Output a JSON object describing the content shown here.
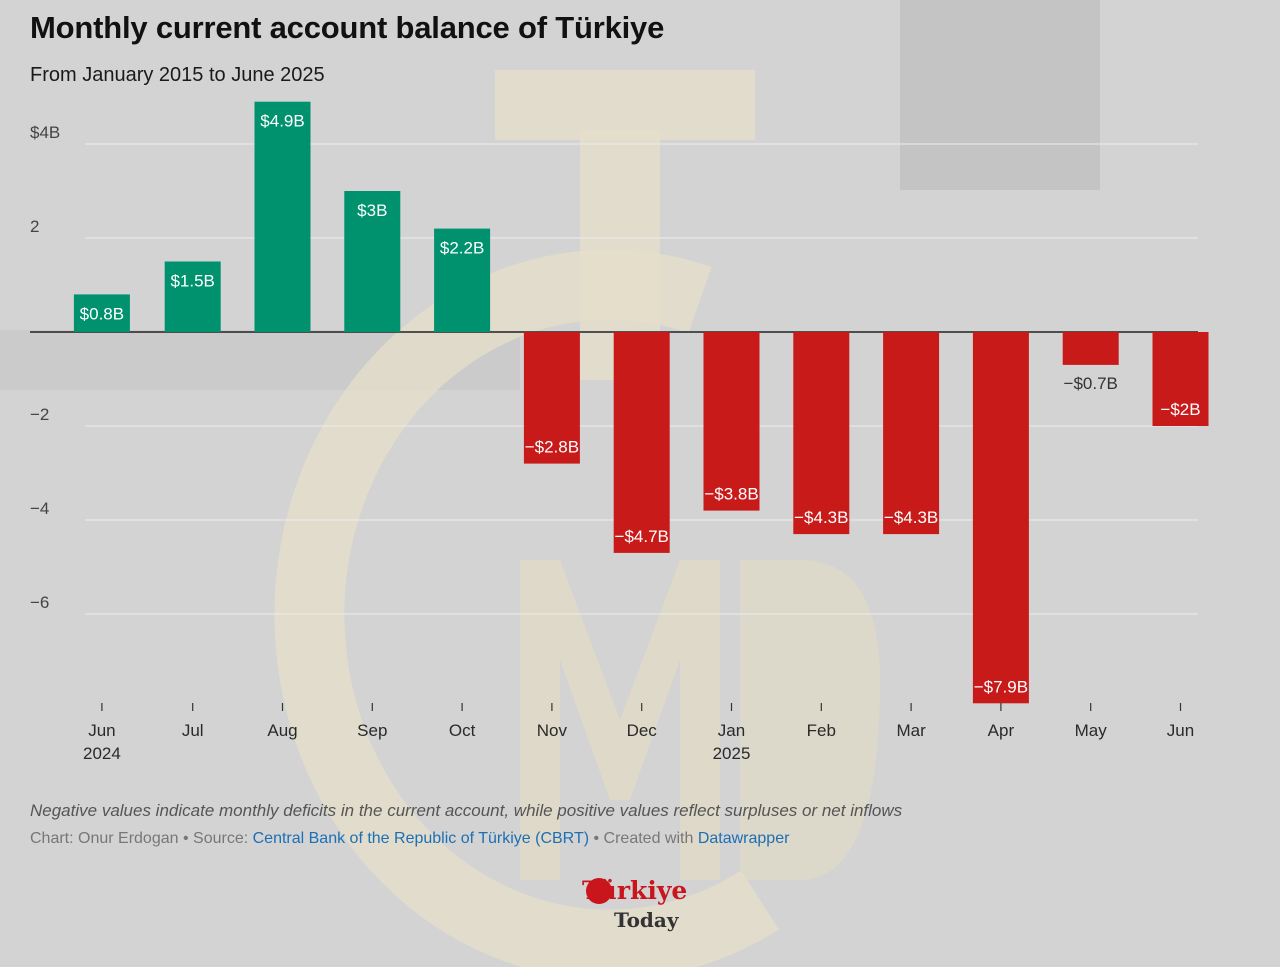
{
  "title": "Monthly current account balance of Türkiye",
  "subtitle": "From January 2015 to June 2025",
  "note": "Negative values indicate monthly deficits in the current account, while positive values reflect surpluses or net inflows",
  "credits": {
    "prefix": "Chart: Onur Erdogan • Source: ",
    "source_link": "Central Bank of the Republic of Türkiye (CBRT)",
    "middle": " • Created with ",
    "tool_link": "Datawrapper"
  },
  "logo": {
    "line1": "Türkiye",
    "line2": "Today"
  },
  "colors": {
    "positive": "#00916e",
    "negative": "#c91a1a"
  },
  "chart_data": {
    "type": "bar",
    "categories": [
      "Jun",
      "Jul",
      "Aug",
      "Sep",
      "Oct",
      "Nov",
      "Dec",
      "Jan",
      "Feb",
      "Mar",
      "Apr",
      "May",
      "Jun"
    ],
    "year_labels": [
      "2024",
      "",
      "",
      "",
      "",
      "",
      "",
      "2025",
      "",
      "",
      "",
      "",
      ""
    ],
    "values": [
      0.8,
      1.5,
      4.9,
      3,
      2.2,
      -2.8,
      -4.7,
      -3.8,
      -4.3,
      -4.3,
      -7.9,
      -0.7,
      -2
    ],
    "value_labels": [
      "$0.8B",
      "$1.5B",
      "$4.9B",
      "$3B",
      "$2.2B",
      "−$2.8B",
      "−$4.7B",
      "−$3.8B",
      "−$4.3B",
      "−$4.3B",
      "−$7.9B",
      "−$0.7B",
      "−$2B"
    ],
    "y_ticks": [
      4,
      2,
      0,
      -2,
      -4,
      -6
    ],
    "y_tick_labels": [
      "$4B",
      "2",
      "",
      "−2",
      "−4",
      "−6"
    ],
    "ylim": [
      -8,
      4.6
    ],
    "grid": true
  }
}
